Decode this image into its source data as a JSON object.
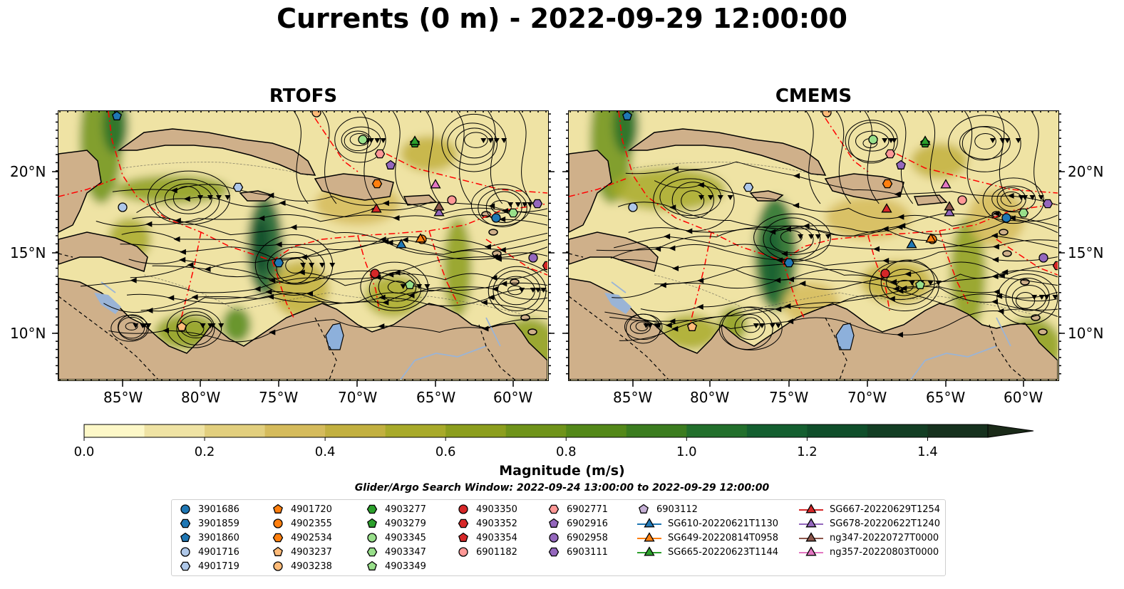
{
  "title": "Currents (0 m) - 2022-09-29 12:00:00",
  "panels": [
    {
      "title": "RTOFS"
    },
    {
      "title": "CMEMS"
    }
  ],
  "axes": {
    "lat_labels": [
      "20°N",
      "15°N",
      "10°N"
    ],
    "lon_labels": [
      "85°W",
      "80°W",
      "75°W",
      "70°W",
      "65°W",
      "60°W"
    ]
  },
  "colorbar": {
    "label": "Magnitude (m/s)",
    "range": [
      0.0,
      1.5
    ],
    "extend": "max",
    "tick_labels": [
      "0.0",
      "0.2",
      "0.4",
      "0.6",
      "0.8",
      "1.0",
      "1.2",
      "1.4"
    ],
    "tick_values": [
      0.0,
      0.2,
      0.4,
      0.6,
      0.8,
      1.0,
      1.2,
      1.4
    ],
    "colors": [
      "#fdf8c8",
      "#efe3a4",
      "#e2cf7e",
      "#d5bb5c",
      "#c2b040",
      "#a8aa2a",
      "#8c9e1e",
      "#6f931a",
      "#538819",
      "#3b7c1f",
      "#226f2c",
      "#145f30",
      "#0f4e2a",
      "#133e24",
      "#16311e",
      "#1a2a18"
    ]
  },
  "legend": {
    "title": "Glider/Argo Search Window: 2022-09-24 13:00:00 to 2022-09-29 12:00:00",
    "entries": [
      {
        "label": "3901686",
        "marker": "circle",
        "color": "#1f77b4"
      },
      {
        "label": "3901859",
        "marker": "hexagon",
        "color": "#1f77b4"
      },
      {
        "label": "3901860",
        "marker": "pentagon",
        "color": "#1f77b4"
      },
      {
        "label": "4901716",
        "marker": "circle",
        "color": "#aec7e8"
      },
      {
        "label": "4901719",
        "marker": "hexagon",
        "color": "#aec7e8"
      },
      {
        "label": "4901720",
        "marker": "pentagon",
        "color": "#ff7f0e"
      },
      {
        "label": "4902355",
        "marker": "circle",
        "color": "#ff7f0e"
      },
      {
        "label": "4902534",
        "marker": "hexagon",
        "color": "#ff7f0e"
      },
      {
        "label": "4903237",
        "marker": "pentagon",
        "color": "#ffbb78"
      },
      {
        "label": "4903238",
        "marker": "circle",
        "color": "#ffbb78"
      },
      {
        "label": "4903277",
        "marker": "hexagon",
        "color": "#2ca02c"
      },
      {
        "label": "4903279",
        "marker": "pentagon",
        "color": "#2ca02c"
      },
      {
        "label": "4903345",
        "marker": "circle",
        "color": "#98df8a"
      },
      {
        "label": "4903347",
        "marker": "hexagon",
        "color": "#98df8a"
      },
      {
        "label": "4903349",
        "marker": "pentagon",
        "color": "#98df8a"
      },
      {
        "label": "4903350",
        "marker": "circle",
        "color": "#d62728"
      },
      {
        "label": "4903352",
        "marker": "hexagon",
        "color": "#d62728"
      },
      {
        "label": "4903354",
        "marker": "pentagon",
        "color": "#d62728"
      },
      {
        "label": "6901182",
        "marker": "circle",
        "color": "#ff9896"
      },
      {
        "label": "6902771",
        "marker": "hexagon",
        "color": "#ff9896"
      },
      {
        "label": "6902916",
        "marker": "pentagon",
        "color": "#9467bd"
      },
      {
        "label": "6902958",
        "marker": "circle",
        "color": "#9467bd"
      },
      {
        "label": "6903111",
        "marker": "hexagon",
        "color": "#9467bd"
      },
      {
        "label": "6903112",
        "marker": "pentagon",
        "color": "#c5b0d5"
      },
      {
        "label": "SG610-20220621T1130",
        "marker": "triangle-line",
        "color": "#1f77b4"
      },
      {
        "label": "SG649-20220814T0958",
        "marker": "triangle-line",
        "color": "#ff7f0e"
      },
      {
        "label": "SG665-20220623T1144",
        "marker": "triangle-line",
        "color": "#2ca02c"
      },
      {
        "label": "SG667-20220629T1254",
        "marker": "triangle-line",
        "color": "#d62728"
      },
      {
        "label": "SG678-20220622T1240",
        "marker": "triangle-line",
        "color": "#9467bd"
      },
      {
        "label": "ng347-20220727T0000",
        "marker": "triangle-line",
        "color": "#8c564b"
      },
      {
        "label": "ng357-20220803T0000",
        "marker": "triangle-line",
        "color": "#e377c2"
      }
    ]
  },
  "map_colors": {
    "land": "#cfb08a",
    "lake": "#8db0db",
    "river": "#9ab4d6",
    "eez_boundary": "#ff0000",
    "streamline": "#000000"
  }
}
